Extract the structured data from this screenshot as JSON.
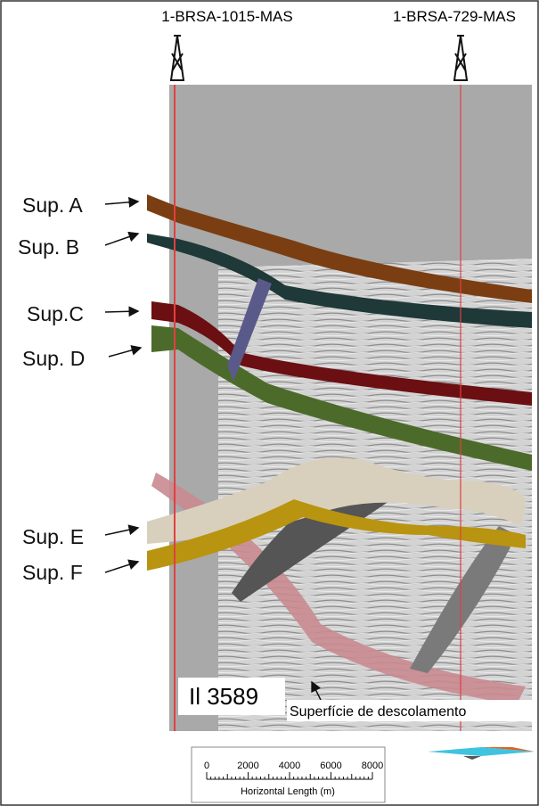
{
  "wells": [
    {
      "label": "1-BRSA-1015-MAS"
    },
    {
      "label": "1-BRSA-729-MAS"
    }
  ],
  "surfaces": [
    {
      "label": "Sup. A"
    },
    {
      "label": "Sup. B"
    },
    {
      "label": "Sup.C"
    },
    {
      "label": "Sup. D"
    },
    {
      "label": "Sup. E"
    },
    {
      "label": "Sup. F"
    }
  ],
  "inline_label": "Il 3589",
  "detachment_label": "Superfície de descolamento",
  "scale_bar": {
    "ticks": [
      0,
      2000,
      4000,
      6000,
      8000
    ],
    "title": "Horizontal Length (m)"
  }
}
